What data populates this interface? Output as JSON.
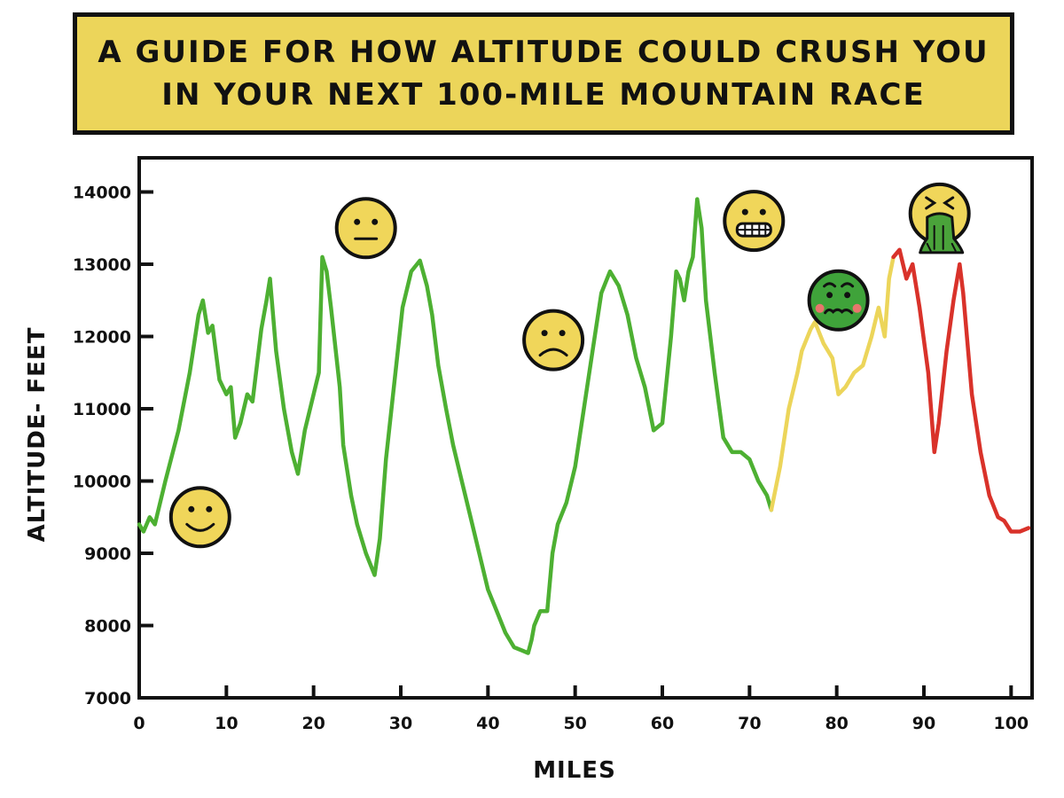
{
  "title": {
    "line1": "A GUIDE FOR HOW ALTITUDE COULD CRUSH YOU",
    "line2": "IN YOUR NEXT  100-MILE MOUNTAIN RACE"
  },
  "colors": {
    "title_background": "#ecd55a",
    "segment_green": "#4db032",
    "segment_yellow": "#ecd55a",
    "segment_red": "#d9322a",
    "face_yellow": "#f0d65a",
    "face_green": "#3fa33a",
    "outline": "#111111"
  },
  "chart_data": {
    "type": "line",
    "title": "A GUIDE FOR HOW ALTITUDE COULD CRUSH YOU IN YOUR NEXT 100-MILE MOUNTAIN RACE",
    "xlabel": "MILES",
    "ylabel": "ALTITUDE- FEET",
    "xlim": [
      0,
      102
    ],
    "ylim": [
      7000,
      14500
    ],
    "x_ticks": [
      0,
      10,
      20,
      30,
      40,
      50,
      60,
      70,
      80,
      90,
      100
    ],
    "x_tick_labels": [
      "0",
      "10",
      "20",
      "30",
      "40",
      "50",
      "60",
      "70",
      "80",
      "90",
      "100"
    ],
    "y_ticks": [
      7000,
      8000,
      9000,
      10000,
      11000,
      12000,
      13000,
      14000
    ],
    "y_tick_labels": [
      "7000",
      "8000",
      "9000",
      "10000",
      "11000",
      "12000",
      "13000",
      "14000"
    ],
    "grid": false,
    "series": [
      {
        "color": "#4db032",
        "x": [
          0,
          0.5,
          1.2,
          1.8,
          3,
          4.5,
          5.8,
          6.8,
          7.3,
          7.9,
          8.4,
          9.2,
          10,
          10.5,
          11,
          11.6,
          12.4,
          13,
          14,
          14.6,
          15,
          15.7,
          16.6,
          17.5,
          18.2,
          19,
          20,
          20.6,
          21,
          21.5,
          22,
          23,
          23.4,
          24.3,
          25,
          26,
          27,
          27.6,
          28.3,
          29.3,
          30.2,
          31.2,
          32.2,
          33,
          33.6,
          34.3,
          35.2,
          36,
          37,
          38,
          39,
          40,
          41,
          42,
          43,
          44,
          44.6,
          45,
          45.3,
          46,
          46.8,
          47.4,
          48,
          49,
          50,
          51,
          52,
          53,
          54,
          55,
          56,
          57,
          58,
          59,
          60,
          61,
          61.6,
          62,
          62.5,
          63,
          63.5,
          64,
          64.5,
          65,
          66,
          67,
          68,
          69,
          70,
          71,
          72,
          72.5
        ],
        "y": [
          9400,
          9300,
          9500,
          9400,
          10000,
          10700,
          11500,
          12300,
          12500,
          12050,
          12150,
          11400,
          11200,
          11300,
          10600,
          10800,
          11200,
          11100,
          12100,
          12500,
          12800,
          11800,
          11000,
          10400,
          10100,
          10700,
          11200,
          11500,
          13100,
          12900,
          12400,
          11300,
          10500,
          9800,
          9400,
          9000,
          8700,
          9200,
          10300,
          11400,
          12400,
          12900,
          13050,
          12700,
          12300,
          11600,
          11000,
          10500,
          10000,
          9500,
          9000,
          8500,
          8200,
          7900,
          7700,
          7650,
          7620,
          7800,
          8000,
          8200,
          8200,
          9000,
          9400,
          9700,
          10200,
          11000,
          11800,
          12600,
          12900,
          12700,
          12300,
          11700,
          11300,
          10700,
          10800,
          12000,
          12900,
          12800,
          12500,
          12900,
          13100,
          13900,
          13500,
          12500,
          11500,
          10600,
          10400,
          10400,
          10300,
          10000,
          9800,
          9600
        ]
      },
      {
        "color": "#ecd55a",
        "x": [
          72.5,
          73.5,
          74.5,
          75.5,
          76,
          77,
          77.5,
          78.5,
          79.5,
          80.2,
          81,
          82,
          83,
          84,
          84.8,
          85.5,
          86,
          86.5
        ],
        "y": [
          9600,
          10200,
          11000,
          11500,
          11800,
          12100,
          12200,
          11900,
          11700,
          11200,
          11300,
          11500,
          11600,
          12000,
          12400,
          12000,
          12800,
          13100
        ]
      },
      {
        "color": "#d9322a",
        "x": [
          86.5,
          87.2,
          88,
          88.7,
          89.5,
          90.5,
          91.2,
          91.7,
          92.6,
          93.4,
          94.1,
          94.5,
          95.5,
          96.5,
          97.5,
          98.5,
          99.2,
          100,
          101,
          102
        ],
        "y": [
          13100,
          13200,
          12800,
          13000,
          12400,
          11500,
          10400,
          10800,
          11800,
          12500,
          13000,
          12600,
          11200,
          10400,
          9800,
          9500,
          9450,
          9300,
          9300,
          9350
        ]
      }
    ],
    "annotations": [
      {
        "icon": "smiley-face-icon",
        "x": 7,
        "y": 9500
      },
      {
        "icon": "neutral-face-icon",
        "x": 26,
        "y": 13500
      },
      {
        "icon": "frowning-face-icon",
        "x": 47.5,
        "y": 11950
      },
      {
        "icon": "grimacing-face-icon",
        "x": 70.5,
        "y": 13600
      },
      {
        "icon": "nauseated-face-icon",
        "x": 80.2,
        "y": 12500
      },
      {
        "icon": "vomiting-face-icon",
        "x": 91.8,
        "y": 13700
      }
    ]
  }
}
